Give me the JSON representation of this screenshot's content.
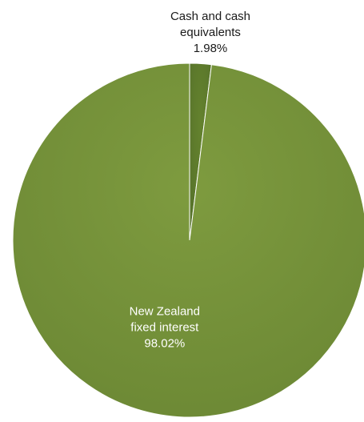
{
  "chart_data": {
    "type": "pie",
    "title": "",
    "slices": [
      {
        "label_lines": [
          "Cash and cash",
          "equivalents"
        ],
        "value": 1.98,
        "value_text": "1.98%",
        "color": "#5e7a2a",
        "label_position": "outside"
      },
      {
        "label_lines": [
          "New Zealand",
          "fixed interest"
        ],
        "value": 98.02,
        "value_text": "98.02%",
        "color": "#77933c",
        "label_position": "inside"
      }
    ],
    "legend": "none"
  }
}
